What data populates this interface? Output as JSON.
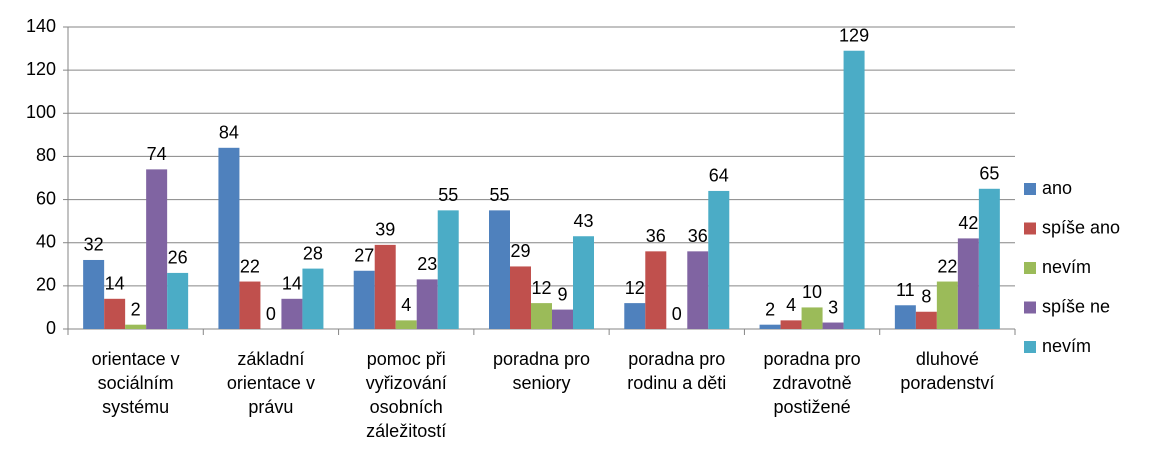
{
  "chart_data": {
    "type": "bar",
    "categories": [
      "orientace v sociálním systému",
      "základní orientace v právu",
      "pomoc při vyřizování osobních záležitostí",
      "poradna pro seniory",
      "poradna pro rodinu a děti",
      "poradna pro zdravotně postižené",
      "dluhové poradenství"
    ],
    "series": [
      {
        "name": "ano",
        "color": "#4f81bd",
        "values": [
          32,
          84,
          27,
          55,
          12,
          2,
          11
        ]
      },
      {
        "name": "spíše ano",
        "color": "#c0504d",
        "values": [
          14,
          22,
          39,
          29,
          36,
          4,
          8
        ]
      },
      {
        "name": "nevím",
        "color": "#9bbb59",
        "values": [
          2,
          0,
          4,
          12,
          0,
          10,
          22
        ]
      },
      {
        "name": "spíše ne",
        "color": "#8064a2",
        "values": [
          74,
          14,
          23,
          9,
          36,
          3,
          42
        ]
      },
      {
        "name": "nevím",
        "color": "#4bacc6",
        "values": [
          26,
          28,
          55,
          43,
          64,
          129,
          65
        ]
      }
    ],
    "ylim": [
      0,
      140
    ],
    "yticks": [
      0,
      20,
      40,
      60,
      80,
      100,
      120,
      140
    ],
    "grid": true,
    "legend": "right"
  }
}
